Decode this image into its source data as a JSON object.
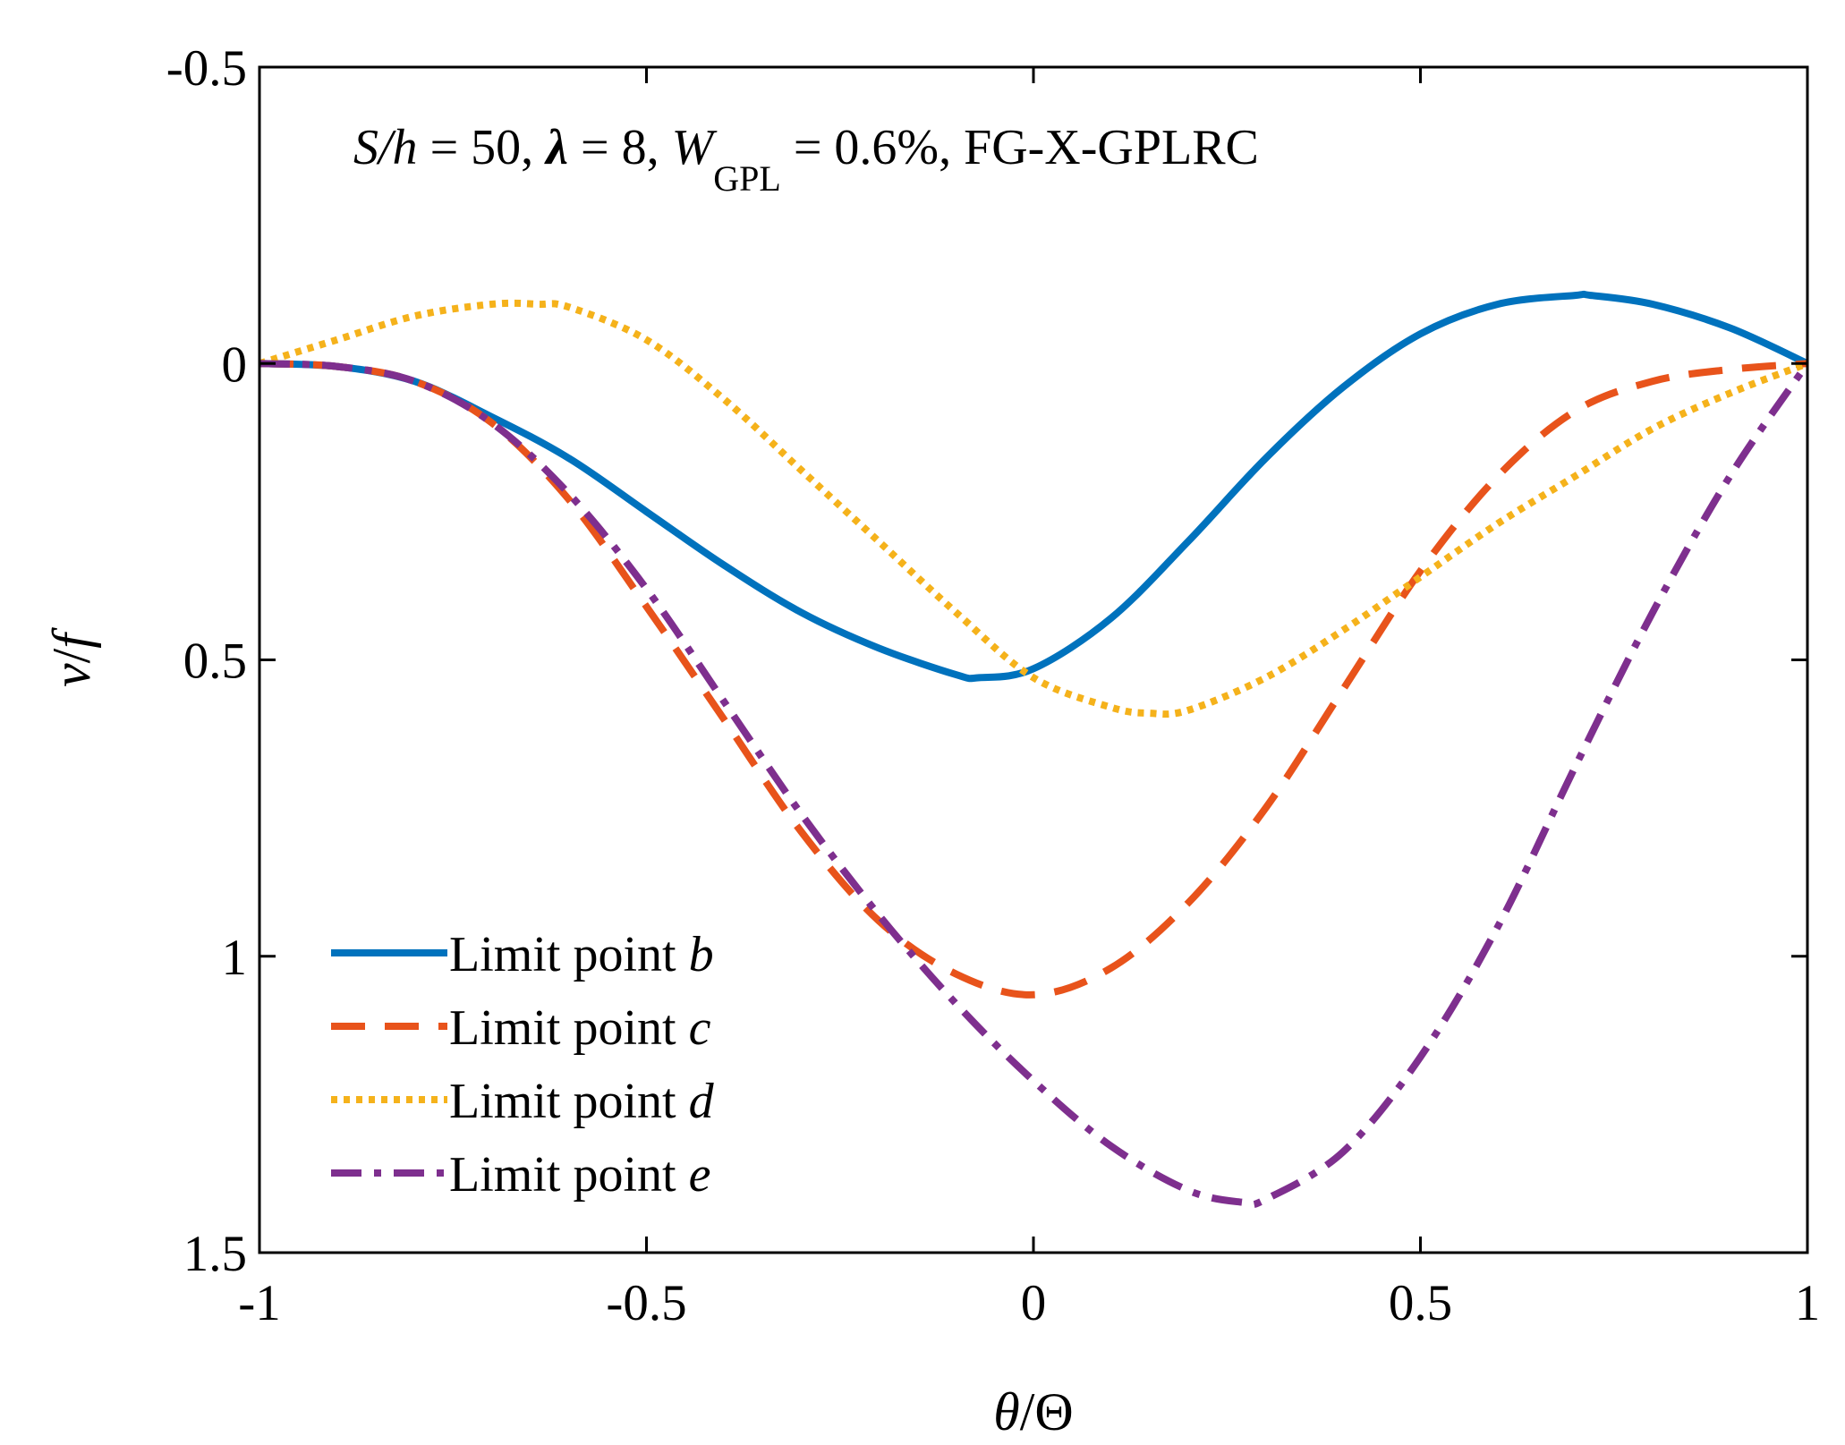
{
  "chart_data": {
    "type": "line",
    "title": "",
    "annotation": {
      "s_h": "S/h",
      "s_h_value": " = 50, ",
      "lambda": "λ",
      "lambda_value": " = 8, ",
      "w": "W",
      "w_sub": "GPL",
      "w_value": " = 0.6%, FG-X-GPLRC"
    },
    "xlabel": {
      "theta": "θ",
      "rest": "/Θ"
    },
    "ylabel": {
      "v": "v",
      "slash": "/",
      "f": "f"
    },
    "xlim": [
      -1,
      1
    ],
    "ylim": [
      -0.5,
      1.5
    ],
    "y_reversed": true,
    "x_ticks": [
      -1,
      -0.5,
      0,
      0.5,
      1
    ],
    "x_tick_labels": [
      "-1",
      "-0.5",
      "0",
      "0.5",
      "1"
    ],
    "y_ticks": [
      -0.5,
      0,
      0.5,
      1,
      1.5
    ],
    "y_tick_labels": [
      "-0.5",
      "0",
      "0.5",
      "1",
      "1.5"
    ],
    "legend_position": "bottom-left",
    "series": [
      {
        "name": "Limit point b",
        "label_prefix": "Limit point ",
        "label_var": "b",
        "color": "#0072BD",
        "style": "solid",
        "x": [
          -1,
          -0.9,
          -0.8,
          -0.7,
          -0.6,
          -0.5,
          -0.4,
          -0.3,
          -0.2,
          -0.1,
          -0.07,
          0,
          0.1,
          0.2,
          0.3,
          0.4,
          0.5,
          0.6,
          0.7,
          0.72,
          0.8,
          0.9,
          1
        ],
        "y": [
          0,
          0.005,
          0.03,
          0.09,
          0.16,
          0.25,
          0.34,
          0.42,
          0.48,
          0.525,
          0.53,
          0.515,
          0.43,
          0.3,
          0.16,
          0.04,
          -0.05,
          -0.1,
          -0.115,
          -0.115,
          -0.1,
          -0.06,
          0
        ]
      },
      {
        "name": "Limit point c",
        "label_prefix": "Limit point ",
        "label_var": "c",
        "color": "#E8531B",
        "style": "dashed",
        "x": [
          -1,
          -0.9,
          -0.8,
          -0.7,
          -0.6,
          -0.5,
          -0.4,
          -0.3,
          -0.2,
          -0.1,
          0,
          0.1,
          0.2,
          0.3,
          0.4,
          0.5,
          0.6,
          0.7,
          0.8,
          0.9,
          1
        ],
        "y": [
          0,
          0.005,
          0.03,
          0.1,
          0.23,
          0.41,
          0.6,
          0.79,
          0.94,
          1.03,
          1.065,
          1.02,
          0.91,
          0.75,
          0.55,
          0.35,
          0.19,
          0.08,
          0.03,
          0.01,
          0
        ]
      },
      {
        "name": "Limit point d",
        "label_prefix": "Limit point ",
        "label_var": "d",
        "color": "#F5B21B",
        "style": "dotted",
        "x": [
          -1,
          -0.9,
          -0.8,
          -0.7,
          -0.64,
          -0.6,
          -0.5,
          -0.4,
          -0.3,
          -0.2,
          -0.1,
          0,
          0.1,
          0.15,
          0.2,
          0.3,
          0.4,
          0.5,
          0.6,
          0.7,
          0.8,
          0.9,
          1
        ],
        "y": [
          0,
          -0.04,
          -0.08,
          -0.1,
          -0.1,
          -0.095,
          -0.04,
          0.06,
          0.18,
          0.3,
          0.42,
          0.53,
          0.58,
          0.59,
          0.585,
          0.53,
          0.45,
          0.36,
          0.27,
          0.19,
          0.11,
          0.05,
          0
        ]
      },
      {
        "name": "Limit point e",
        "label_prefix": "Limit point ",
        "label_var": "e",
        "color": "#7E2F8E",
        "style": "dashdot",
        "x": [
          -1,
          -0.9,
          -0.8,
          -0.7,
          -0.6,
          -0.5,
          -0.4,
          -0.3,
          -0.2,
          -0.1,
          0,
          0.1,
          0.2,
          0.27,
          0.3,
          0.4,
          0.5,
          0.6,
          0.7,
          0.8,
          0.9,
          1
        ],
        "y": [
          0,
          0.005,
          0.03,
          0.1,
          0.22,
          0.38,
          0.57,
          0.76,
          0.93,
          1.08,
          1.21,
          1.32,
          1.395,
          1.415,
          1.41,
          1.33,
          1.17,
          0.95,
          0.68,
          0.42,
          0.19,
          0
        ]
      }
    ]
  }
}
